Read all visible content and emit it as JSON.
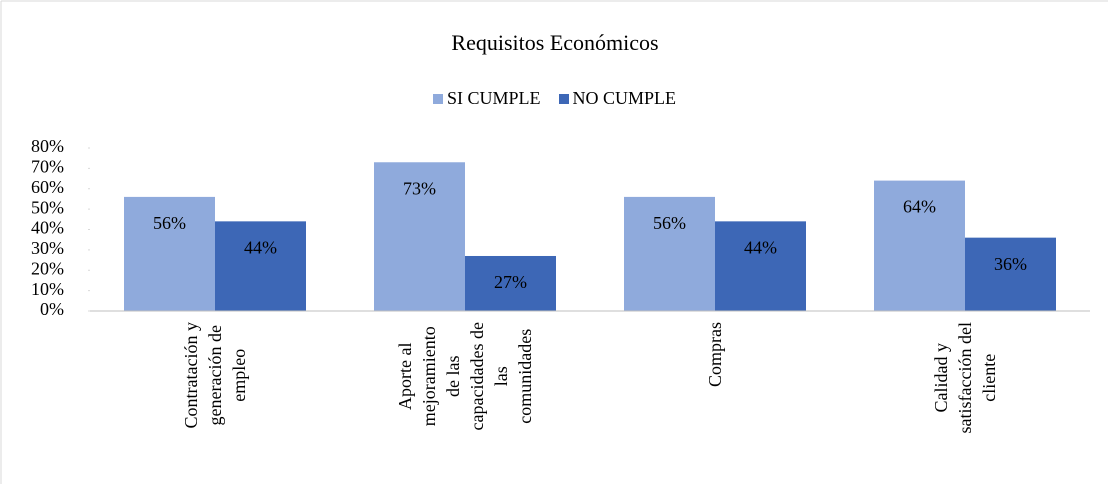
{
  "chart_data": {
    "type": "bar",
    "title": "Requisitos Económicos",
    "categories": [
      "Contratación y\ngeneración de\nempleo",
      "Aporte al\nmejoramiento\nde las\ncapacidades de\nlas\ncomunidades",
      "Compras",
      "Calidad y\nsatisfacción del\ncliente"
    ],
    "series": [
      {
        "name": "SI CUMPLE",
        "color": "#8faadc",
        "values": [
          56,
          73,
          56,
          64
        ],
        "value_labels": [
          "56%",
          "73%",
          "56%",
          "64%"
        ]
      },
      {
        "name": "NO CUMPLE",
        "color": "#3d67b6",
        "values": [
          44,
          27,
          44,
          36
        ],
        "value_labels": [
          "44%",
          "27%",
          "44%",
          "36%"
        ]
      }
    ],
    "ylim": [
      0,
      80
    ],
    "yticks": [
      {
        "value": 0,
        "label": "0%"
      },
      {
        "value": 10,
        "label": "10%"
      },
      {
        "value": 20,
        "label": "20%"
      },
      {
        "value": 30,
        "label": "30%"
      },
      {
        "value": 40,
        "label": "40%"
      },
      {
        "value": 50,
        "label": "50%"
      },
      {
        "value": 60,
        "label": "60%"
      },
      {
        "value": 70,
        "label": "70%"
      },
      {
        "value": 80,
        "label": "80%"
      }
    ],
    "grid": false,
    "legend": "top"
  }
}
